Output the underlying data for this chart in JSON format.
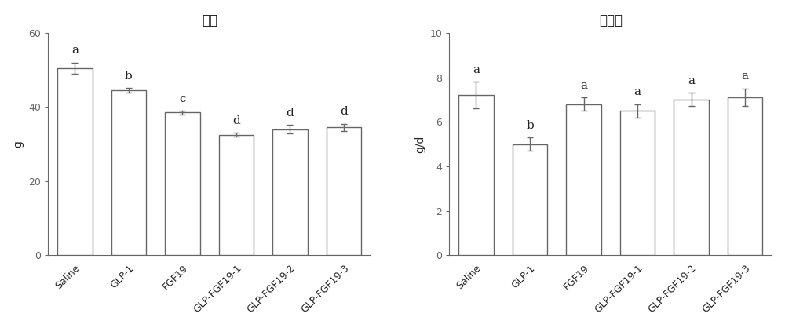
{
  "chart1": {
    "title": "体重",
    "ylabel": "g",
    "categories": [
      "Saline",
      "GLP-1",
      "FGF19",
      "GLP-FGF19-1",
      "GLP-FGF19-2",
      "GLP-FGF19-3"
    ],
    "values": [
      50.5,
      44.5,
      38.5,
      32.5,
      34.0,
      34.5
    ],
    "errors": [
      1.5,
      0.6,
      0.5,
      0.5,
      1.2,
      1.0
    ],
    "letters": [
      "a",
      "b",
      "c",
      "d",
      "d",
      "d"
    ],
    "ylim": [
      0,
      60
    ],
    "yticks": [
      0,
      20,
      40,
      60
    ],
    "bar_color": "#ffffff",
    "bar_edgecolor": "#666666",
    "bar_linewidth": 1.0,
    "capsize": 3,
    "error_linewidth": 1.0,
    "error_color": "#666666"
  },
  "chart2": {
    "title": "饮食量",
    "ylabel": "g/d",
    "categories": [
      "Saline",
      "GLP-1",
      "FGF19",
      "GLP-FGF19-1",
      "GLP-FGF19-2",
      "GLP-FGF19-3"
    ],
    "values": [
      7.2,
      5.0,
      6.8,
      6.5,
      7.0,
      7.1
    ],
    "errors": [
      0.6,
      0.3,
      0.3,
      0.3,
      0.3,
      0.4
    ],
    "letters": [
      "a",
      "b",
      "a",
      "a",
      "a",
      "a"
    ],
    "ylim": [
      0,
      10
    ],
    "yticks": [
      0,
      2,
      4,
      6,
      8,
      10
    ],
    "bar_color": "#ffffff",
    "bar_edgecolor": "#666666",
    "bar_linewidth": 1.0,
    "capsize": 3,
    "error_linewidth": 1.0,
    "error_color": "#666666"
  },
  "figure": {
    "figsize": [
      10.0,
      4.18
    ],
    "dpi": 100,
    "bg_color": "#ffffff",
    "letter_fontsize": 11,
    "title_fontsize": 12,
    "axis_fontsize": 10,
    "tick_fontsize": 9,
    "label_fontsize": 10
  }
}
